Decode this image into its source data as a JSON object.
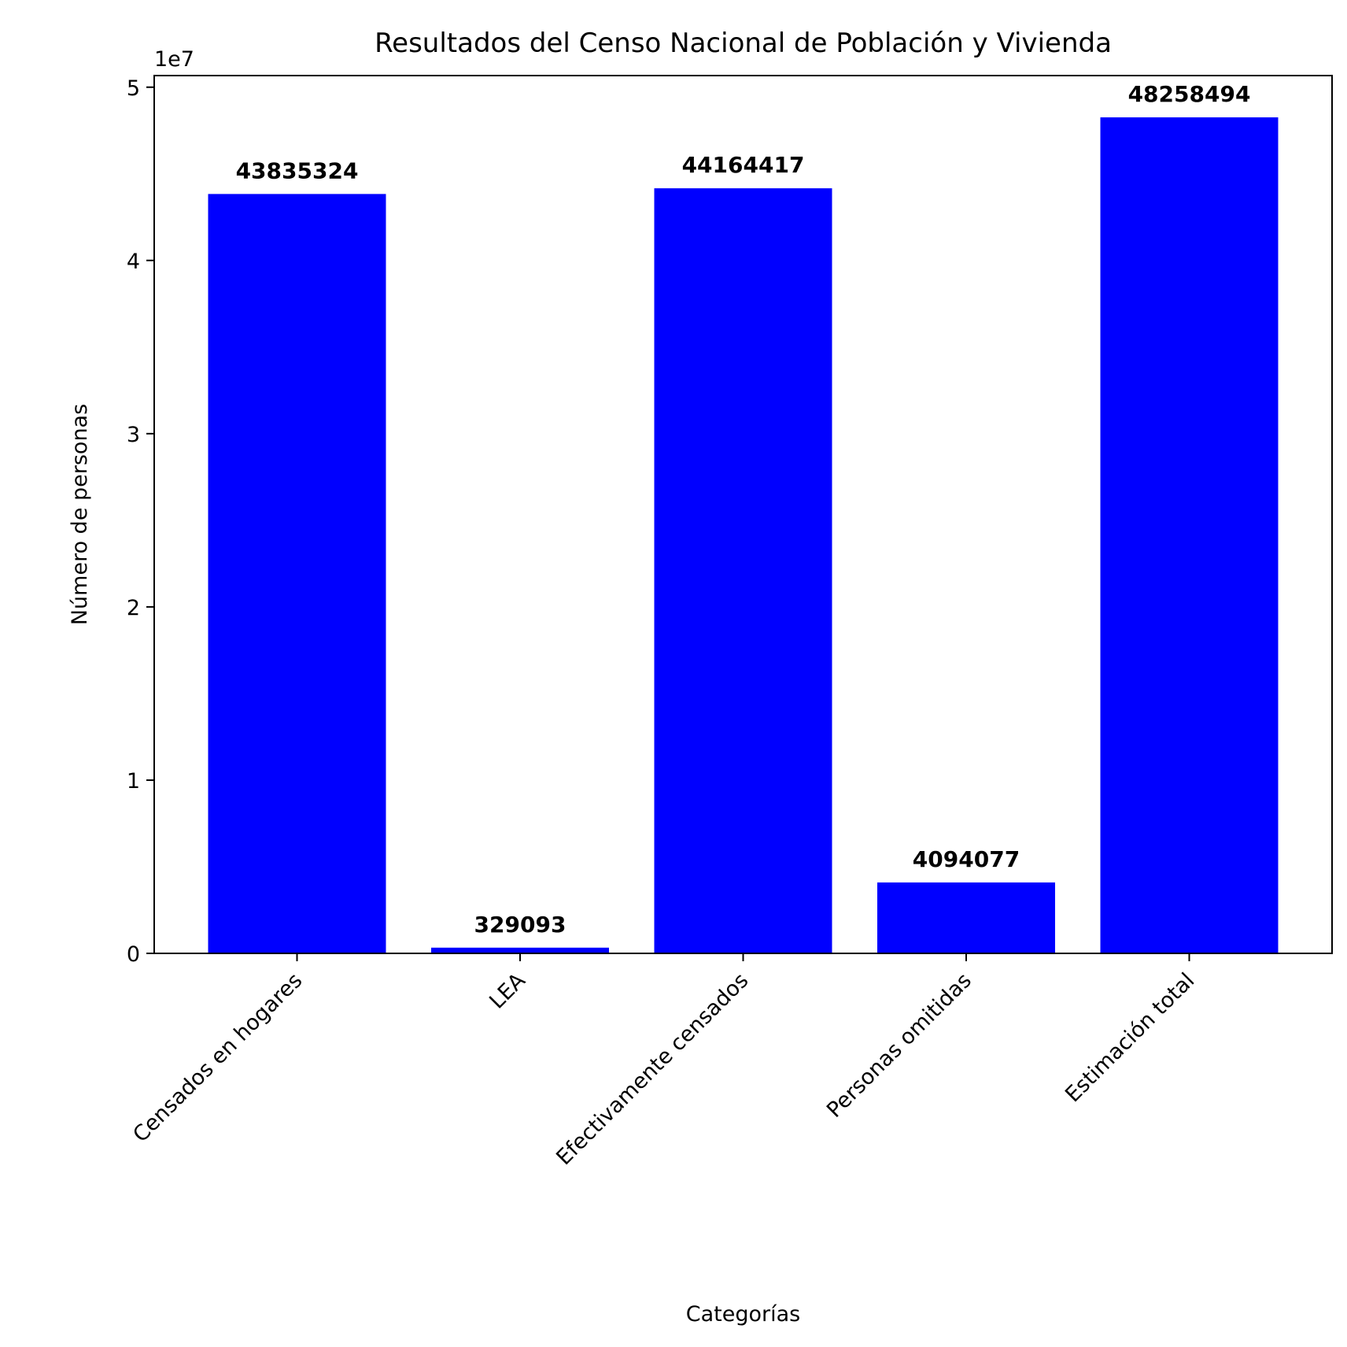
{
  "chart_data": {
    "type": "bar",
    "title": "Resultados del Censo Nacional de Población y Vivienda",
    "xlabel": "Categorías",
    "ylabel": "Número de personas",
    "y_offset_text": "1e7",
    "categories": [
      "Censados en hogares",
      "LEA",
      "Efectivamente censados",
      "Personas omitidas",
      "Estimación total"
    ],
    "values": [
      43835324,
      329093,
      44164417,
      4094077,
      48258494
    ],
    "data_labels": [
      "43835324",
      "329093",
      "44164417",
      "4094077",
      "48258494"
    ],
    "ylim": [
      0,
      50670418
    ],
    "y_ticks": [
      0,
      10000000,
      20000000,
      30000000,
      40000000,
      50000000
    ],
    "y_tick_labels": [
      "0",
      "1",
      "2",
      "3",
      "4",
      "5"
    ],
    "bar_color": "#0000ff",
    "grid": false,
    "legend": "none"
  }
}
